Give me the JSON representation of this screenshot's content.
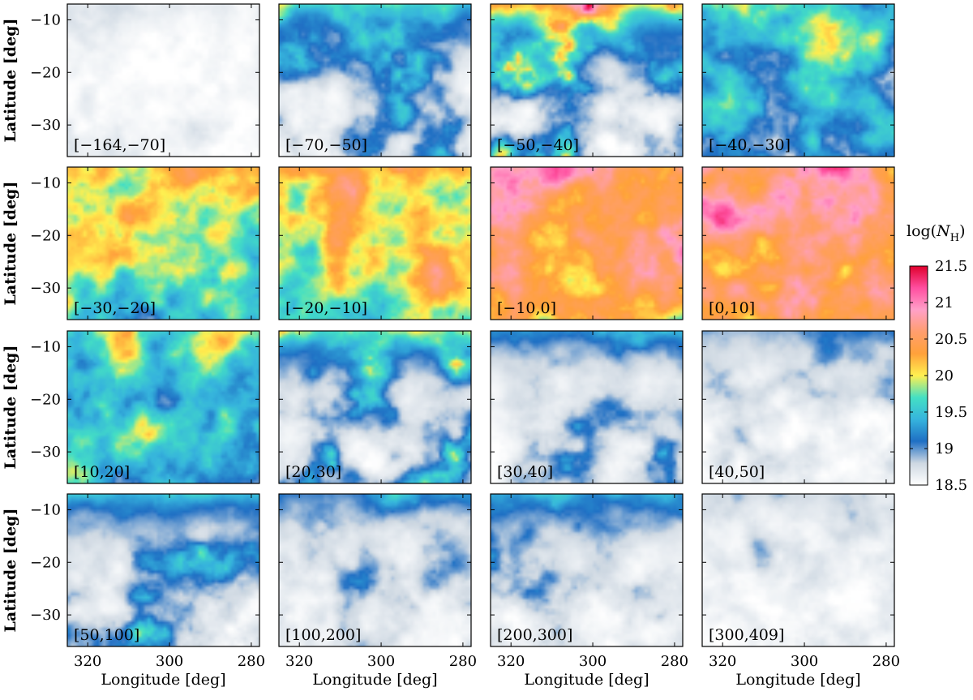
{
  "chart_data": {
    "type": "heatmap",
    "grid": {
      "rows": 4,
      "cols": 4
    },
    "xlabel": "Longitude [deg]",
    "ylabel": "Latitude [deg]",
    "xlim": [
      325,
      278
    ],
    "ylim": [
      -36,
      -7
    ],
    "xticks": [
      320,
      300,
      280
    ],
    "xtick_labels": [
      "320",
      "300",
      "280"
    ],
    "yticks": [
      -10,
      -20,
      -30
    ],
    "ytick_labels": [
      "−10",
      "−20",
      "−30"
    ],
    "panels": [
      {
        "label": "[−164,−70]",
        "mean_log_nh": 18.55
      },
      {
        "label": "[−70,−50]",
        "mean_log_nh": 18.9
      },
      {
        "label": "[−50,−40]",
        "mean_log_nh": 19.2
      },
      {
        "label": "[−40,−30]",
        "mean_log_nh": 19.5
      },
      {
        "label": "[−30,−20]",
        "mean_log_nh": 19.8
      },
      {
        "label": "[−20,−10]",
        "mean_log_nh": 20.1
      },
      {
        "label": "[−10,0]",
        "mean_log_nh": 20.5
      },
      {
        "label": "[0,10]",
        "mean_log_nh": 20.6
      },
      {
        "label": "[10,20]",
        "mean_log_nh": 19.6
      },
      {
        "label": "[20,30]",
        "mean_log_nh": 19.0
      },
      {
        "label": "[30,40]",
        "mean_log_nh": 18.8
      },
      {
        "label": "[40,50]",
        "mean_log_nh": 18.7
      },
      {
        "label": "[50,100]",
        "mean_log_nh": 18.9
      },
      {
        "label": "[100,200]",
        "mean_log_nh": 18.75
      },
      {
        "label": "[200,300]",
        "mean_log_nh": 18.85
      },
      {
        "label": "[300,409]",
        "mean_log_nh": 18.6
      }
    ],
    "colorbar": {
      "label_prefix": "log(",
      "label_var": "N",
      "label_sub": "H",
      "label_suffix": ")",
      "min": 18.5,
      "max": 21.5,
      "ticks": [
        18.5,
        19,
        19.5,
        20,
        20.5,
        21,
        21.5
      ],
      "tick_labels": [
        "18.5",
        "19",
        "19.5",
        "20",
        "20.5",
        "21",
        "21.5"
      ],
      "colors": [
        "#ffffff",
        "#ced8e2",
        "#1f6fc4",
        "#36b4dd",
        "#44e0c4",
        "#fff050",
        "#ffa13a",
        "#ff9e6e",
        "#ffa0c8",
        "#ff4fa0",
        "#e0002c"
      ]
    }
  }
}
